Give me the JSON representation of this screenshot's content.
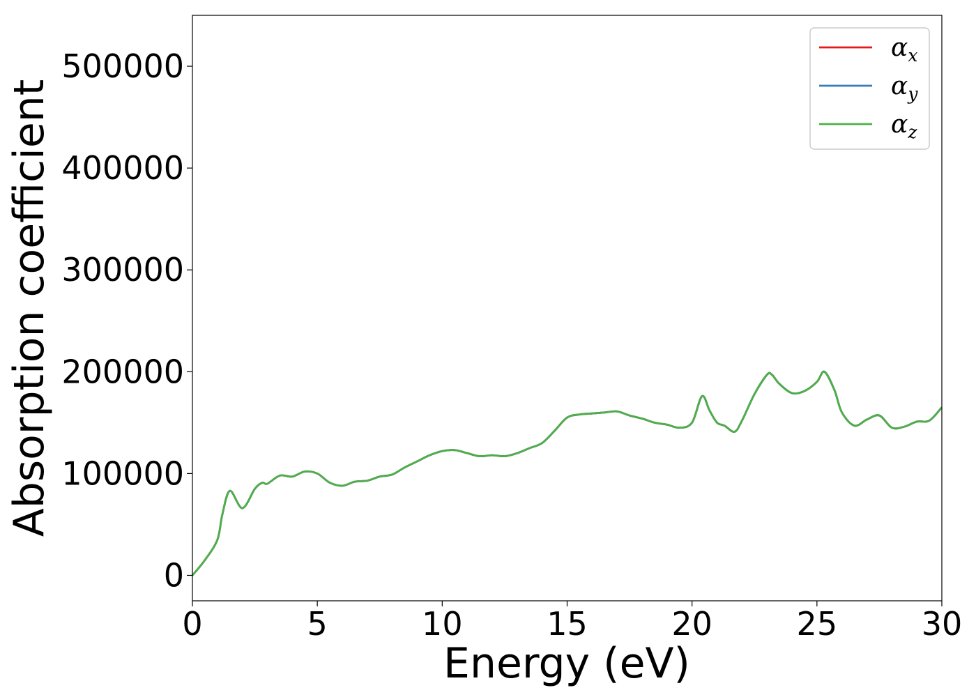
{
  "chart_data": {
    "type": "line",
    "title": "",
    "xlabel": "Energy (eV)",
    "ylabel": "Absorption coefficient",
    "xlim": [
      0,
      30
    ],
    "ylim": [
      -25000,
      550000
    ],
    "xticks": [
      0,
      5,
      10,
      15,
      20,
      25,
      30
    ],
    "yticks": [
      0,
      100000,
      200000,
      300000,
      400000,
      500000
    ],
    "grid": false,
    "legend_position": "top-right",
    "x": [
      0,
      0.5,
      1.0,
      1.2,
      1.5,
      2.0,
      2.5,
      2.8,
      3.0,
      3.5,
      4.0,
      4.5,
      5.0,
      5.5,
      6.0,
      6.5,
      7.0,
      7.5,
      8.0,
      8.5,
      9.0,
      9.5,
      10.0,
      10.5,
      11.0,
      11.5,
      12.0,
      12.5,
      13.0,
      13.5,
      14.0,
      14.5,
      15.0,
      15.5,
      16.0,
      16.5,
      17.0,
      17.5,
      18.0,
      18.5,
      19.0,
      19.5,
      20.0,
      20.4,
      20.7,
      21.0,
      21.3,
      21.7,
      22.0,
      22.5,
      23.0,
      23.2,
      23.5,
      24.0,
      24.5,
      25.0,
      25.3,
      25.7,
      26.0,
      26.5,
      27.0,
      27.5,
      28.0,
      28.5,
      29.0,
      29.5,
      30.0
    ],
    "series": [
      {
        "name": "αx",
        "color": "#e41a1c",
        "values": [
          0,
          15000,
          35000,
          60000,
          83000,
          66000,
          85000,
          91000,
          90000,
          98000,
          97000,
          102000,
          100000,
          91000,
          88000,
          92000,
          93000,
          97000,
          99000,
          106000,
          112000,
          118000,
          122000,
          123000,
          120000,
          117000,
          118000,
          117000,
          120000,
          125000,
          130000,
          142000,
          155000,
          158000,
          159000,
          160000,
          161000,
          157000,
          154000,
          150000,
          148000,
          145000,
          150000,
          176000,
          162000,
          150000,
          147000,
          141000,
          152000,
          178000,
          197000,
          197000,
          188000,
          179000,
          181000,
          190000,
          200000,
          182000,
          160000,
          147000,
          153000,
          157000,
          145000,
          146000,
          151000,
          152000,
          165000
        ]
      },
      {
        "name": "αy",
        "color": "#377eb8",
        "values": [
          0,
          15000,
          35000,
          60000,
          83000,
          66000,
          85000,
          91000,
          90000,
          98000,
          97000,
          102000,
          100000,
          91000,
          88000,
          92000,
          93000,
          97000,
          99000,
          106000,
          112000,
          118000,
          122000,
          123000,
          120000,
          117000,
          118000,
          117000,
          120000,
          125000,
          130000,
          142000,
          155000,
          158000,
          159000,
          160000,
          161000,
          157000,
          154000,
          150000,
          148000,
          145000,
          150000,
          176000,
          162000,
          150000,
          147000,
          141000,
          152000,
          178000,
          197000,
          197000,
          188000,
          179000,
          181000,
          190000,
          200000,
          182000,
          160000,
          147000,
          153000,
          157000,
          145000,
          146000,
          151000,
          152000,
          165000
        ]
      },
      {
        "name": "αz",
        "color": "#4daf4a",
        "values": [
          0,
          15000,
          35000,
          60000,
          83000,
          66000,
          85000,
          91000,
          90000,
          98000,
          97000,
          102000,
          100000,
          91000,
          88000,
          92000,
          93000,
          97000,
          99000,
          106000,
          112000,
          118000,
          122000,
          123000,
          120000,
          117000,
          118000,
          117000,
          120000,
          125000,
          130000,
          142000,
          155000,
          158000,
          159000,
          160000,
          161000,
          157000,
          154000,
          150000,
          148000,
          145000,
          150000,
          176000,
          162000,
          150000,
          147000,
          141000,
          152000,
          178000,
          197000,
          197000,
          188000,
          179000,
          181000,
          190000,
          200000,
          182000,
          160000,
          147000,
          153000,
          157000,
          145000,
          146000,
          151000,
          152000,
          165000
        ]
      }
    ]
  }
}
